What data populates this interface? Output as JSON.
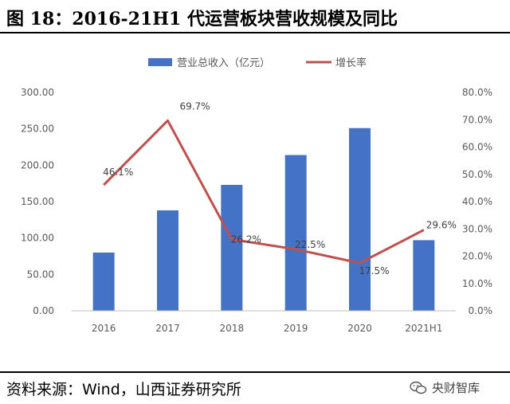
{
  "header": {
    "title": "图 18：2016-21H1 代运营板块营收规模及同比"
  },
  "footer": {
    "source": "资料来源：Wind，山西证券研究所"
  },
  "watermark": {
    "text": "央财智库",
    "icon": "wechat-icon"
  },
  "chart_data": {
    "type": "bar+line",
    "categories": [
      "2016",
      "2017",
      "2018",
      "2019",
      "2020",
      "2021H1"
    ],
    "bar_series": {
      "name": "营业总收入（亿元）",
      "values": [
        80,
        138,
        173,
        214,
        251,
        97
      ],
      "color": "#4472C4",
      "axis": "left"
    },
    "line_series": {
      "name": "增长率",
      "values": [
        46.1,
        69.7,
        26.2,
        22.5,
        17.5,
        29.6
      ],
      "labels": [
        "46.1%",
        "69.7%",
        "26.2%",
        "22.5%",
        "17.5%",
        "29.6%"
      ],
      "color": "#C0504D",
      "axis": "right"
    },
    "left_axis": {
      "ylim": [
        0,
        300
      ],
      "ticks": [
        0,
        50,
        100,
        150,
        200,
        250,
        300
      ],
      "tick_labels": [
        "0.00",
        "50.00",
        "100.00",
        "150.00",
        "200.00",
        "250.00",
        "300.00"
      ]
    },
    "right_axis": {
      "ylim": [
        0,
        80
      ],
      "ticks": [
        0,
        10,
        20,
        30,
        40,
        50,
        60,
        70,
        80
      ],
      "tick_labels": [
        "0.0%",
        "10.0%",
        "20.0%",
        "30.0%",
        "40.0%",
        "50.0%",
        "60.0%",
        "70.0%",
        "80.0%"
      ]
    },
    "legend_position": "top-center",
    "grid": false
  }
}
